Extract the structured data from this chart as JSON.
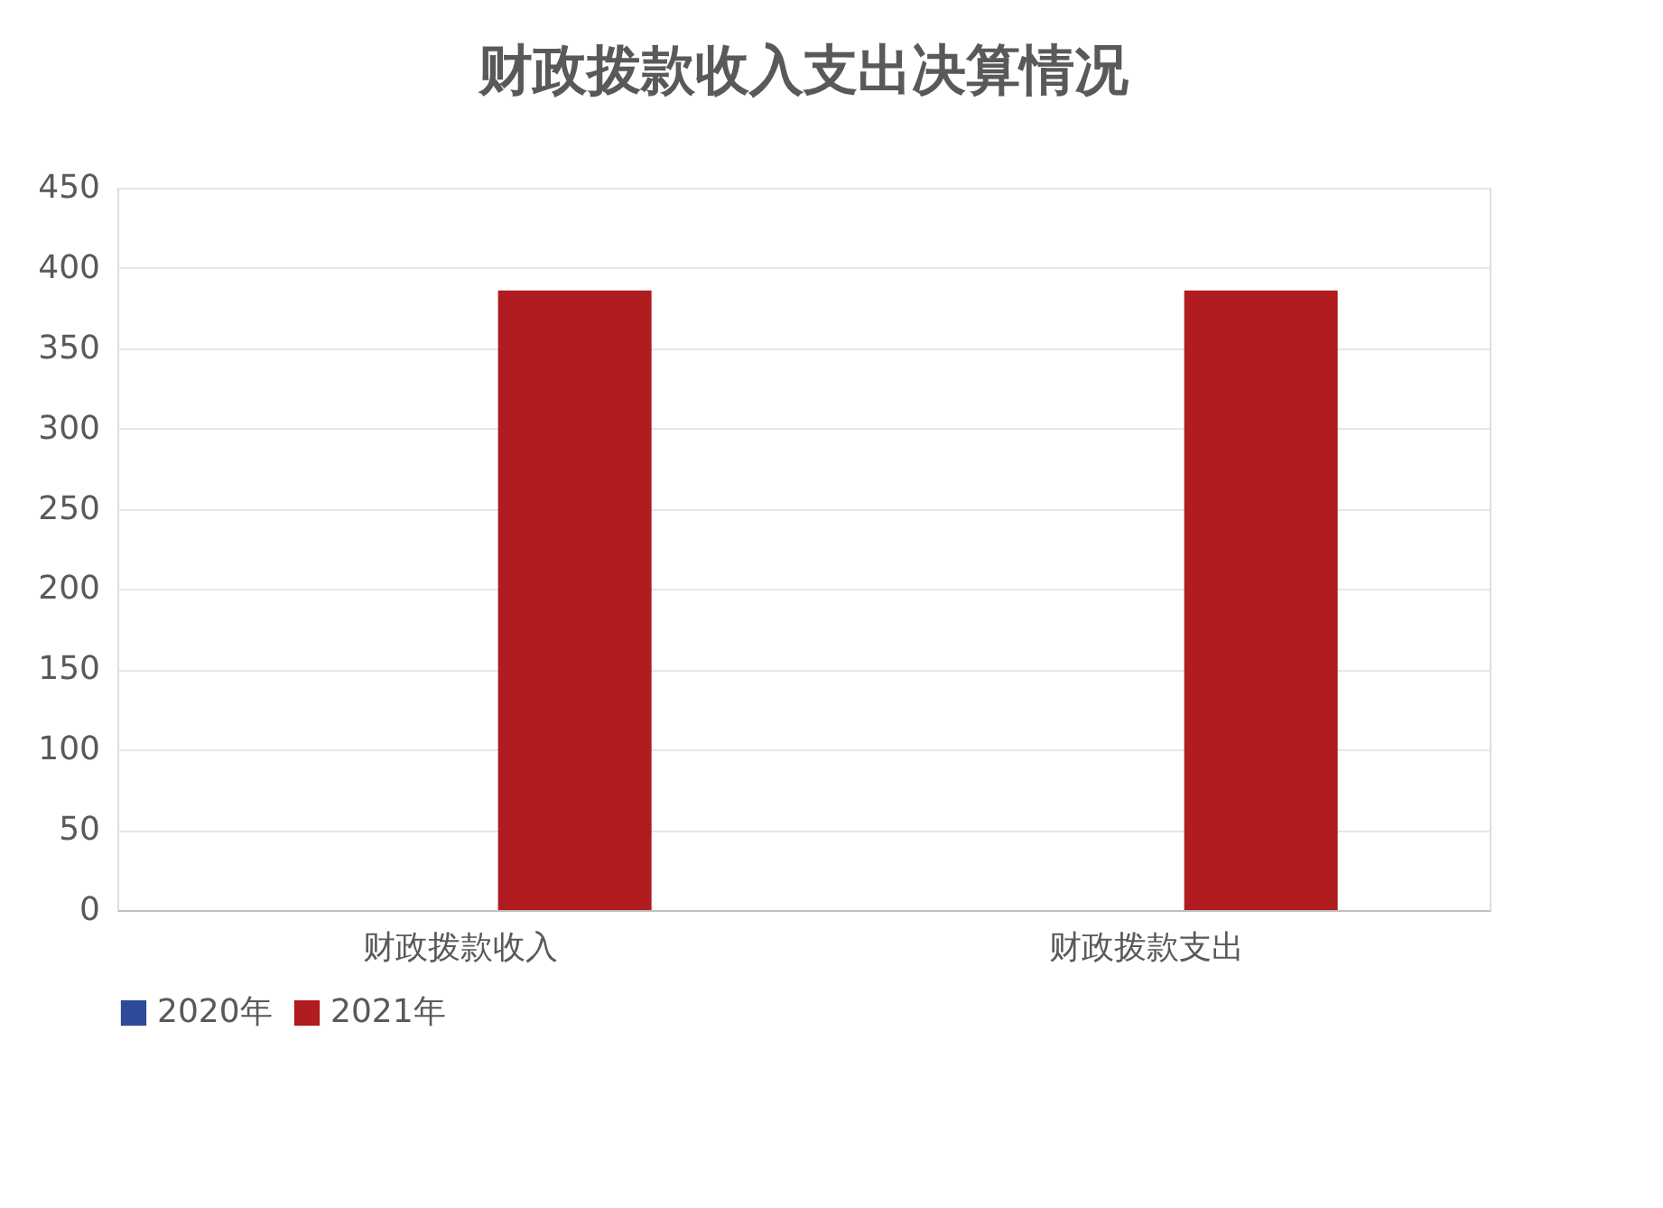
{
  "chart_data": {
    "type": "bar",
    "title": "财政拨款收入支出决算情况",
    "categories": [
      "财政拨款收入",
      "财政拨款支出"
    ],
    "series": [
      {
        "name": "2020年",
        "color": "#2e4b9a",
        "values": [
          null,
          null
        ]
      },
      {
        "name": "2021年",
        "color": "#b01c1f",
        "values": [
          386,
          386
        ]
      }
    ],
    "ylim": [
      0,
      450
    ],
    "yticks": [
      0,
      50,
      100,
      150,
      200,
      250,
      300,
      350,
      400,
      450
    ],
    "grid": "y",
    "legend": "bottom"
  }
}
